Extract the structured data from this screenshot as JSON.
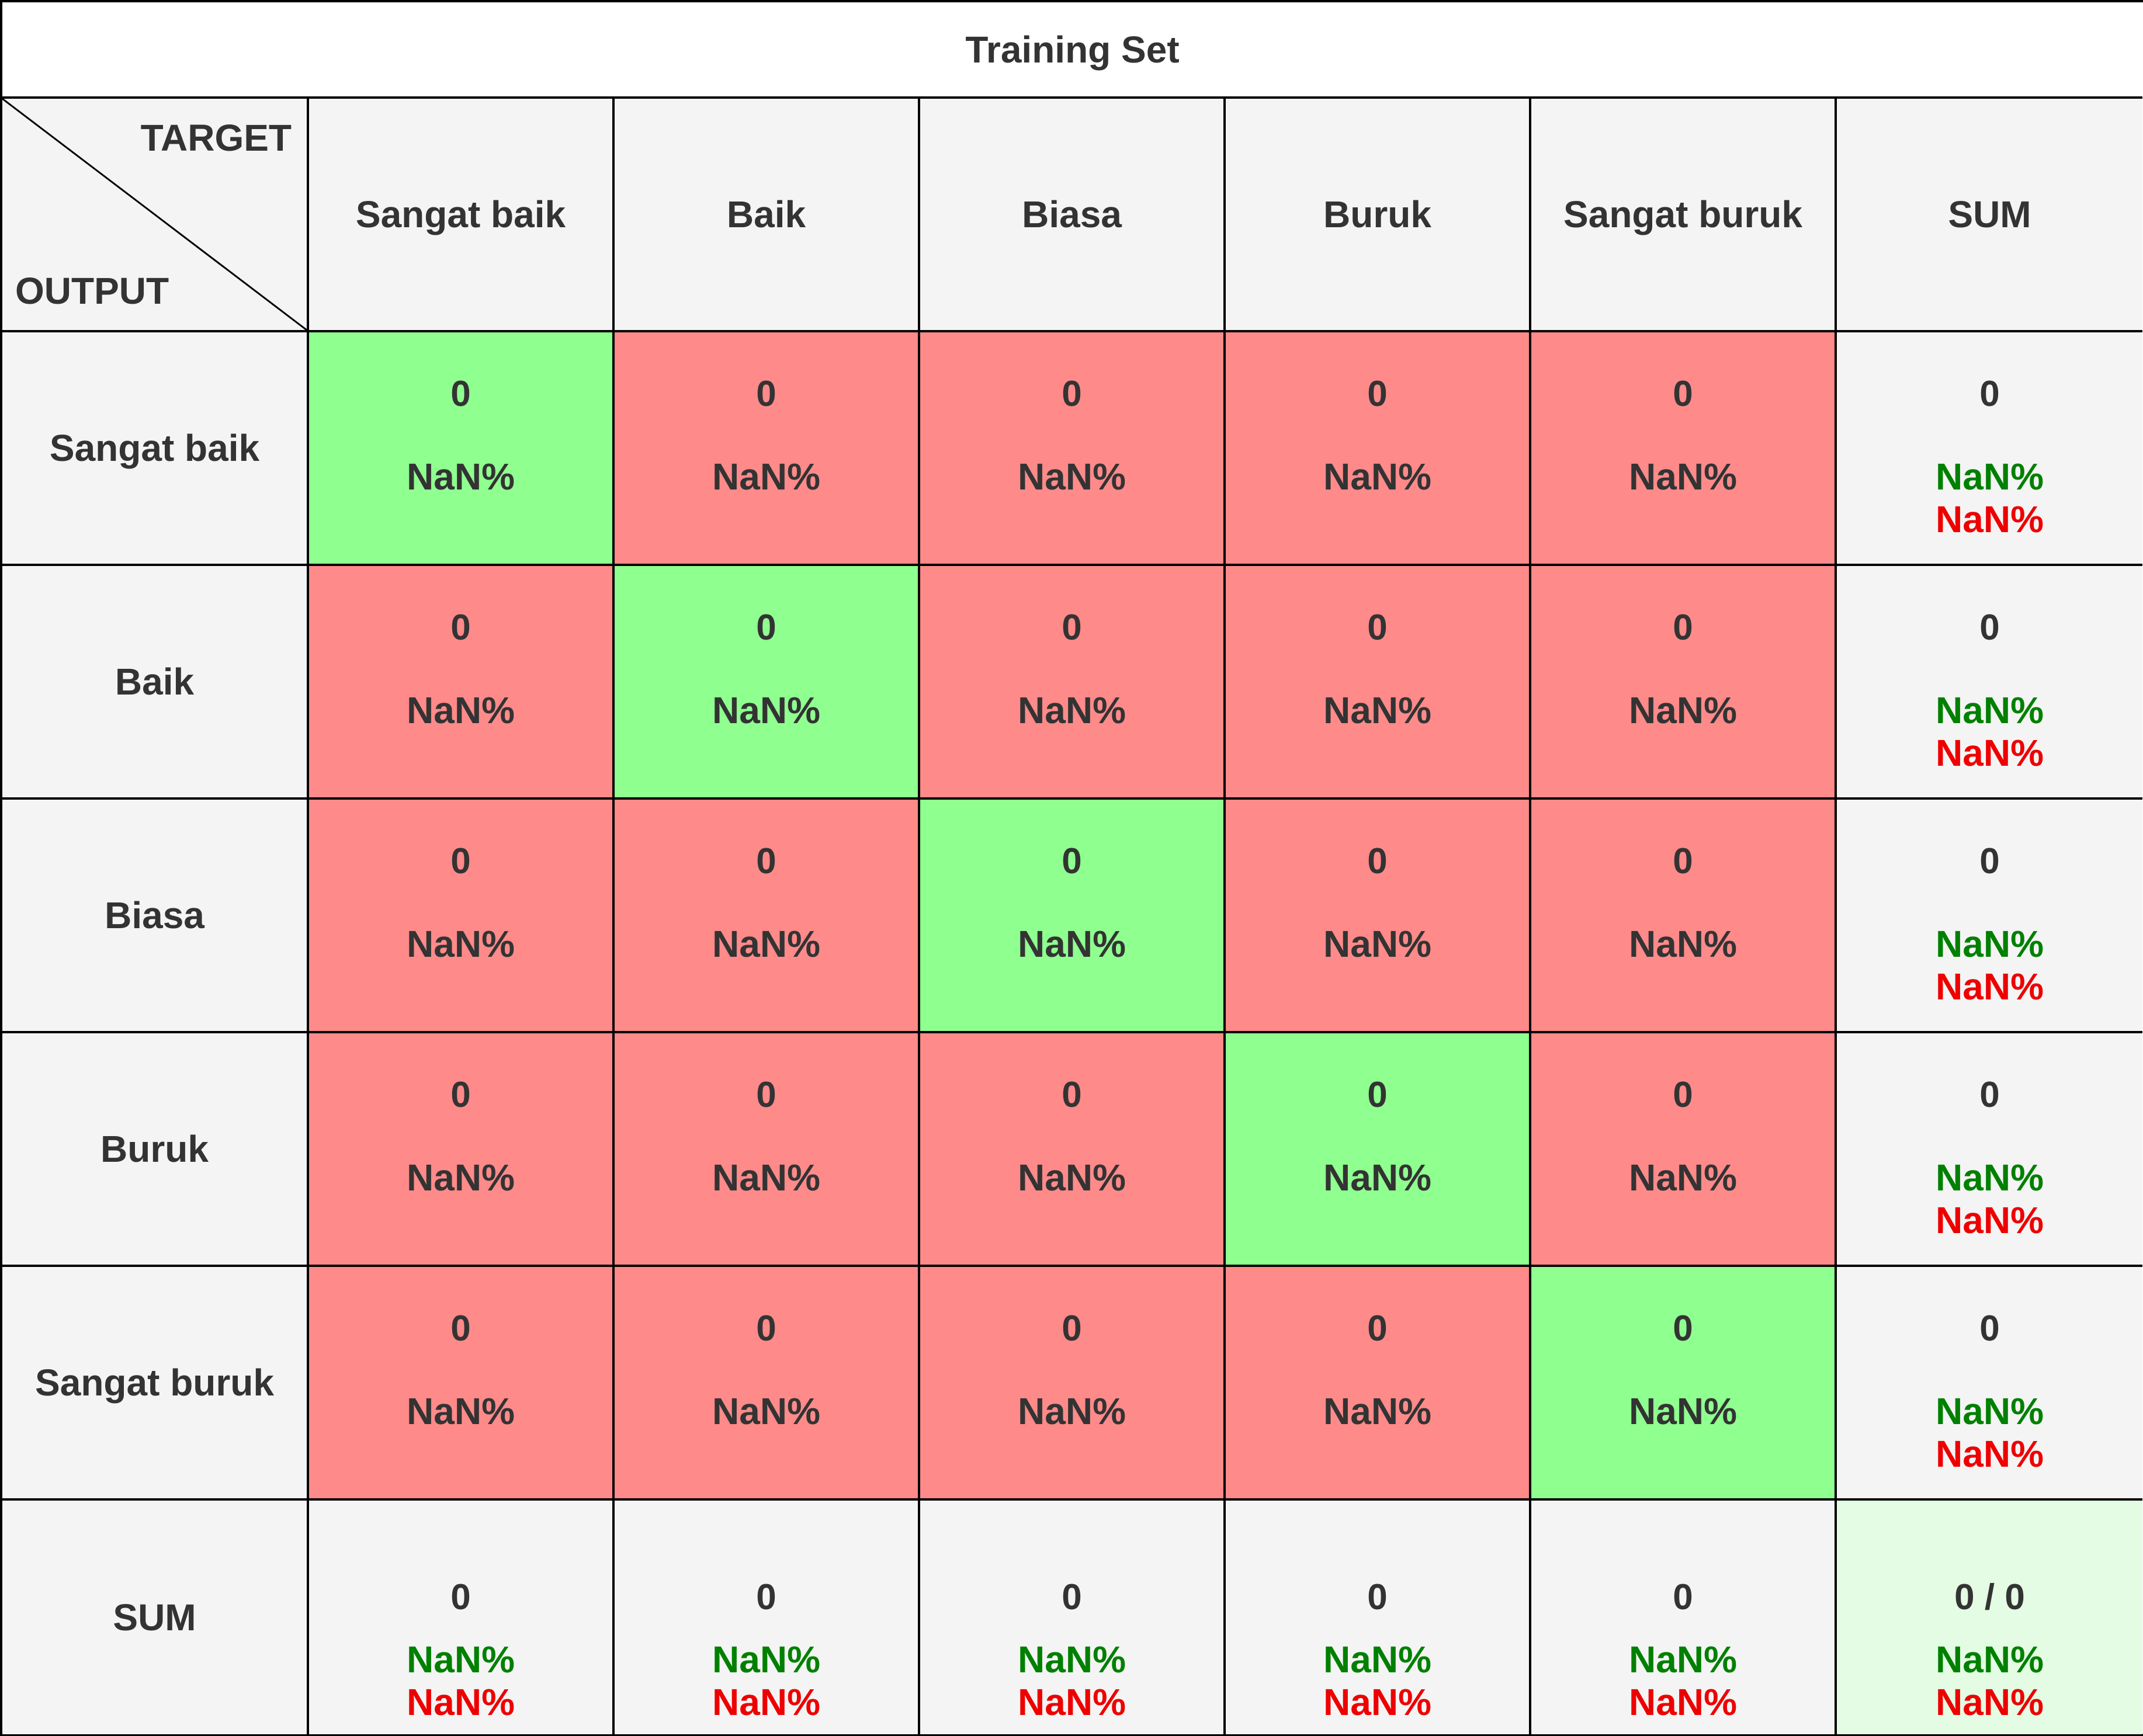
{
  "chart_data": {
    "type": "table",
    "title": "Training Set",
    "corner": {
      "target_label": "TARGET",
      "output_label": "OUTPUT"
    },
    "columns": [
      "Sangat baik",
      "Baik",
      "Biasa",
      "Buruk",
      "Sangat buruk",
      "SUM"
    ],
    "rows": [
      {
        "label": "Sangat baik",
        "cells": [
          {
            "count": "0",
            "percent": "NaN%",
            "status": "correct"
          },
          {
            "count": "0",
            "percent": "NaN%",
            "status": "wrong"
          },
          {
            "count": "0",
            "percent": "NaN%",
            "status": "wrong"
          },
          {
            "count": "0",
            "percent": "NaN%",
            "status": "wrong"
          },
          {
            "count": "0",
            "percent": "NaN%",
            "status": "wrong"
          }
        ],
        "sum": {
          "count": "0",
          "good": "NaN%",
          "bad": "NaN%"
        }
      },
      {
        "label": "Baik",
        "cells": [
          {
            "count": "0",
            "percent": "NaN%",
            "status": "wrong"
          },
          {
            "count": "0",
            "percent": "NaN%",
            "status": "correct"
          },
          {
            "count": "0",
            "percent": "NaN%",
            "status": "wrong"
          },
          {
            "count": "0",
            "percent": "NaN%",
            "status": "wrong"
          },
          {
            "count": "0",
            "percent": "NaN%",
            "status": "wrong"
          }
        ],
        "sum": {
          "count": "0",
          "good": "NaN%",
          "bad": "NaN%"
        }
      },
      {
        "label": "Biasa",
        "cells": [
          {
            "count": "0",
            "percent": "NaN%",
            "status": "wrong"
          },
          {
            "count": "0",
            "percent": "NaN%",
            "status": "wrong"
          },
          {
            "count": "0",
            "percent": "NaN%",
            "status": "correct"
          },
          {
            "count": "0",
            "percent": "NaN%",
            "status": "wrong"
          },
          {
            "count": "0",
            "percent": "NaN%",
            "status": "wrong"
          }
        ],
        "sum": {
          "count": "0",
          "good": "NaN%",
          "bad": "NaN%"
        }
      },
      {
        "label": "Buruk",
        "cells": [
          {
            "count": "0",
            "percent": "NaN%",
            "status": "wrong"
          },
          {
            "count": "0",
            "percent": "NaN%",
            "status": "wrong"
          },
          {
            "count": "0",
            "percent": "NaN%",
            "status": "wrong"
          },
          {
            "count": "0",
            "percent": "NaN%",
            "status": "correct"
          },
          {
            "count": "0",
            "percent": "NaN%",
            "status": "wrong"
          }
        ],
        "sum": {
          "count": "0",
          "good": "NaN%",
          "bad": "NaN%"
        }
      },
      {
        "label": "Sangat buruk",
        "cells": [
          {
            "count": "0",
            "percent": "NaN%",
            "status": "wrong"
          },
          {
            "count": "0",
            "percent": "NaN%",
            "status": "wrong"
          },
          {
            "count": "0",
            "percent": "NaN%",
            "status": "wrong"
          },
          {
            "count": "0",
            "percent": "NaN%",
            "status": "wrong"
          },
          {
            "count": "0",
            "percent": "NaN%",
            "status": "correct"
          }
        ],
        "sum": {
          "count": "0",
          "good": "NaN%",
          "bad": "NaN%"
        }
      }
    ],
    "sum_row": {
      "label": "SUM",
      "cells": [
        {
          "count": "0",
          "good": "NaN%",
          "bad": "NaN%"
        },
        {
          "count": "0",
          "good": "NaN%",
          "bad": "NaN%"
        },
        {
          "count": "0",
          "good": "NaN%",
          "bad": "NaN%"
        },
        {
          "count": "0",
          "good": "NaN%",
          "bad": "NaN%"
        },
        {
          "count": "0",
          "good": "NaN%",
          "bad": "NaN%"
        }
      ],
      "total": {
        "count": "0 / 0",
        "good": "NaN%",
        "bad": "NaN%"
      }
    },
    "colors": {
      "correct": "#8fff8f",
      "wrong": "#ff8a8a",
      "total": "#e3fce3",
      "header": "#f4f4f4",
      "good_text": "#008000",
      "bad_text": "#ee0000"
    }
  }
}
